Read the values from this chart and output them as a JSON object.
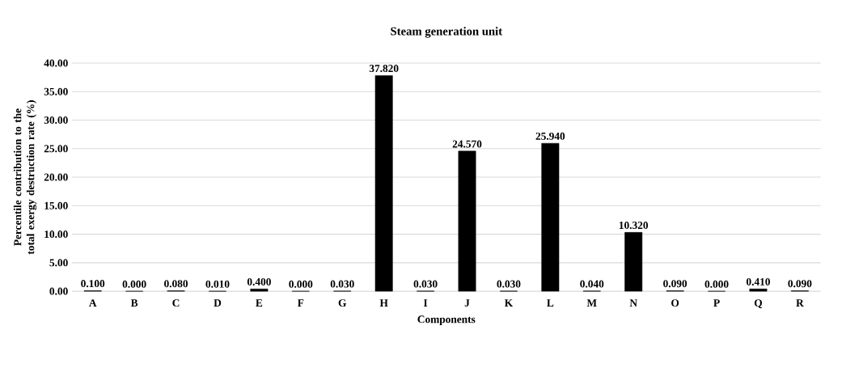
{
  "chart_data": {
    "type": "bar",
    "title": "Steam generation unit",
    "xlabel": "Components",
    "ylabel": "Percentile contribution to the total exergy destruction rate (%)",
    "categories": [
      "A",
      "B",
      "C",
      "D",
      "E",
      "F",
      "G",
      "H",
      "I",
      "J",
      "K",
      "L",
      "M",
      "N",
      "O",
      "P",
      "Q",
      "R"
    ],
    "values": [
      0.1,
      0.0,
      0.08,
      0.01,
      0.4,
      0.0,
      0.03,
      37.82,
      0.03,
      24.57,
      0.03,
      25.94,
      0.04,
      10.32,
      0.09,
      0.0,
      0.41,
      0.09
    ],
    "value_labels": [
      "0.100",
      "0.000",
      "0.080",
      "0.010",
      "0.400",
      "0.000",
      "0.030",
      "37.820",
      "0.030",
      "24.570",
      "0.030",
      "25.940",
      "0.040",
      "10.320",
      "0.090",
      "0.000",
      "0.410",
      "0.090"
    ],
    "color": "#000000",
    "ylim": [
      0,
      40
    ],
    "yticks": [
      {
        "value": 0,
        "label": "0.00"
      },
      {
        "value": 5,
        "label": "5.00"
      },
      {
        "value": 10,
        "label": "10.00"
      },
      {
        "value": 15,
        "label": "15.00"
      },
      {
        "value": 20,
        "label": "20.00"
      },
      {
        "value": 25,
        "label": "25.00"
      },
      {
        "value": 30,
        "label": "30.00"
      },
      {
        "value": 35,
        "label": "35.00"
      },
      {
        "value": 40,
        "label": "40.00"
      }
    ],
    "grid": "y"
  }
}
